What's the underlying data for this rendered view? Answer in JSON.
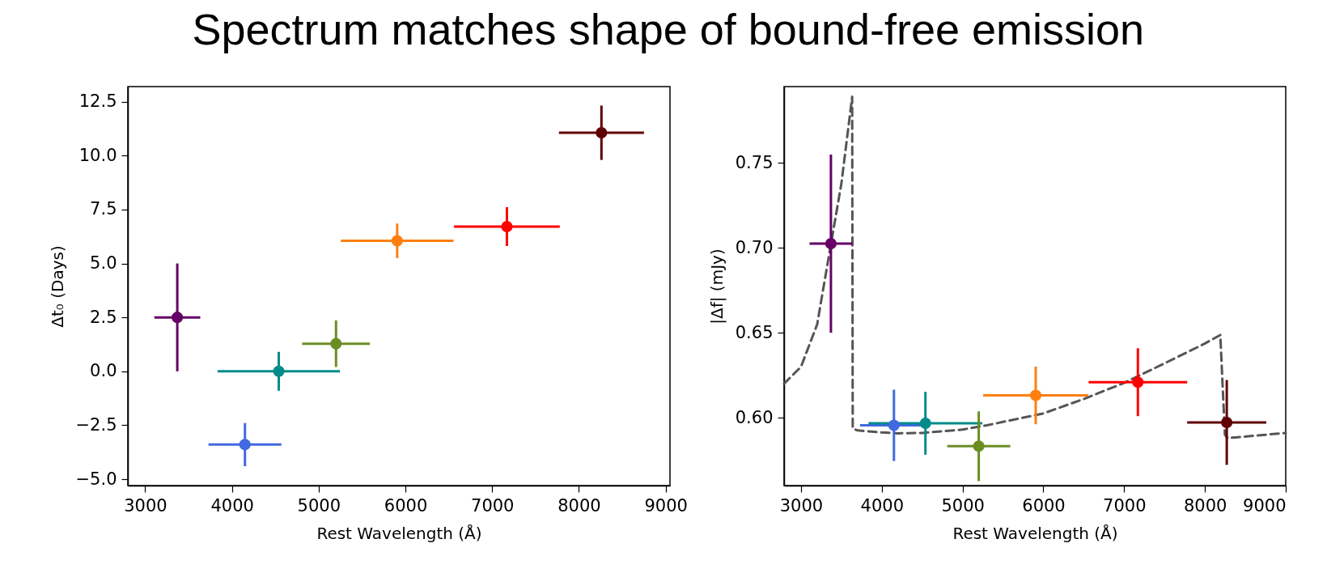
{
  "chart_data": [
    {
      "type": "scatter",
      "title": "Spectrum matches shape of bound-free emission",
      "xlabel": "Rest Wavelength (Å)",
      "ylabel": "Δt₀ (Days)",
      "marker": "circle",
      "grid": false,
      "xlim": [
        2800,
        9050
      ],
      "xticks": [
        3000,
        4000,
        5000,
        6000,
        7000,
        8000,
        9000
      ],
      "ylim": [
        -5.3,
        13.2
      ],
      "yticks": [
        {
          "value": -5,
          "label": "−5.0"
        },
        {
          "value": -2.5,
          "label": "−2.5"
        },
        {
          "value": 0,
          "label": "0.0"
        },
        2.5,
        {
          "value": 5,
          "label": "5.0"
        },
        7.5,
        {
          "value": 10,
          "label": "10.0"
        },
        12.5
      ],
      "series": [
        {
          "x": [
            3370,
            4150,
            4540,
            5200,
            5905,
            7170,
            8260
          ],
          "values": [
            2.5,
            -3.4,
            0,
            1.28,
            6.05,
            6.71,
            11.06
          ],
          "errors": [
            2.5,
            1.0,
            0.9,
            1.08,
            0.8,
            0.9,
            1.26
          ],
          "xerrors": [
            265,
            420,
            705,
            390,
            650,
            610,
            490
          ],
          "colors": [
            "#660066",
            "#4169e1",
            "#008b8b",
            "#6b8e23",
            "#ff7f0e",
            "#ff0000",
            "#600000"
          ]
        }
      ]
    },
    {
      "type": "scatter",
      "xlabel": "Rest Wavelength (Å)",
      "ylabel": "|Δf| (mJy)",
      "marker": "circle",
      "grid": false,
      "xlim": [
        2790,
        9000
      ],
      "xticks": [
        3000,
        4000,
        5000,
        6000,
        7000,
        8000,
        9000
      ],
      "ylim": [
        0.56,
        0.795
      ],
      "yticks": [
        {
          "value": 0.6,
          "label": "0.60"
        },
        0.65,
        {
          "value": 0.7,
          "label": "0.70"
        },
        0.75
      ],
      "series": [
        {
          "type": "line",
          "color": "#555555",
          "line_style": "dashed",
          "marker": "none",
          "x": [
            2790,
            3000,
            3200,
            3362,
            3500,
            3633,
            3640,
            3700,
            4000,
            4200,
            4500,
            5000,
            5300,
            5600,
            6000,
            6500,
            7000,
            7500,
            8000,
            8190,
            8247,
            8280,
            9000
          ],
          "values": [
            0.62,
            0.63,
            0.655,
            0.7,
            0.738,
            0.789,
            0.5936,
            0.5925,
            0.5913,
            0.5908,
            0.591,
            0.593,
            0.5955,
            0.5985,
            0.6025,
            0.611,
            0.6205,
            0.632,
            0.6437,
            0.6487,
            0.59,
            0.588,
            0.591
          ]
        },
        {
          "x": [
            3370,
            4150,
            4540,
            5200,
            5905,
            7170,
            8270
          ],
          "values": [
            0.7025,
            0.5955,
            0.5967,
            0.5832,
            0.6131,
            0.6209,
            0.5972
          ],
          "errors": [
            0.0525,
            0.021,
            0.0185,
            0.0205,
            0.017,
            0.02,
            0.025
          ],
          "xerrors": [
            265,
            420,
            705,
            390,
            650,
            610,
            490
          ],
          "colors": [
            "#660066",
            "#4169e1",
            "#008b8b",
            "#6b8e23",
            "#ff7f0e",
            "#ff0000",
            "#600000"
          ]
        }
      ]
    }
  ]
}
